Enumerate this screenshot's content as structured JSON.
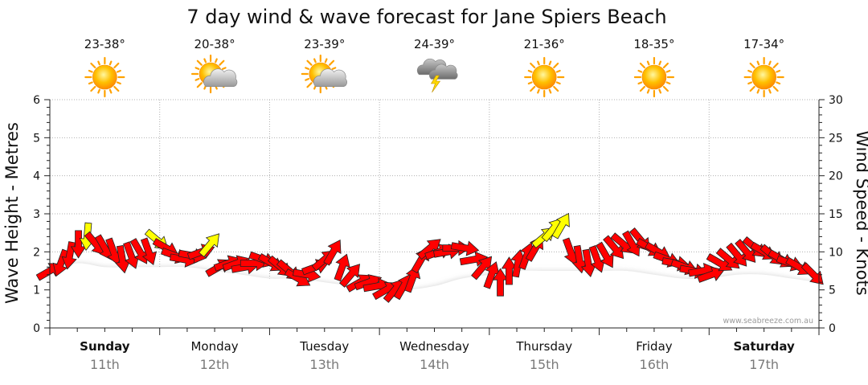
{
  "chart_data": {
    "type": "line",
    "title": "7 day wind & wave forecast for Jane Spiers Beach",
    "ylabel_left": "Wave Height - Metres",
    "ylabel_right": "Wind Speed - Knots",
    "ylim_left": [
      0,
      6
    ],
    "ylim_right": [
      0,
      30
    ],
    "yticks_left": [
      "0",
      "1",
      "2",
      "3",
      "4",
      "5",
      "6"
    ],
    "yticks_right": [
      "0",
      "5",
      "10",
      "15",
      "20",
      "25",
      "30"
    ],
    "grid": true,
    "watermark": "www.seabreeze.com.au",
    "days": [
      {
        "name": "Sunday",
        "date": "11th",
        "temp": "23-38°",
        "icon": "sun-icon",
        "bold": true
      },
      {
        "name": "Monday",
        "date": "12th",
        "temp": "20-38°",
        "icon": "sun-cloud-icon",
        "bold": false
      },
      {
        "name": "Tuesday",
        "date": "13th",
        "temp": "23-39°",
        "icon": "sun-cloud-icon",
        "bold": false
      },
      {
        "name": "Wednesday",
        "date": "14th",
        "temp": "24-39°",
        "icon": "storm-icon",
        "bold": false
      },
      {
        "name": "Thursday",
        "date": "15th",
        "temp": "21-36°",
        "icon": "sun-icon",
        "bold": false
      },
      {
        "name": "Friday",
        "date": "16th",
        "temp": "18-35°",
        "icon": "sun-icon",
        "bold": false
      },
      {
        "name": "Saturday",
        "date": "17th",
        "temp": "17-34°",
        "icon": "sun-icon",
        "bold": true
      }
    ],
    "wave_x_days": [
      0,
      0.25,
      0.5,
      0.75,
      1,
      1.25,
      1.5,
      1.75,
      2,
      2.25,
      2.5,
      2.75,
      3,
      3.25,
      3.5,
      3.75,
      4,
      4.25,
      4.5,
      4.75,
      5,
      5.25,
      5.5,
      5.75,
      6,
      6.25,
      6.5,
      6.75,
      7
    ],
    "wave_height_m": [
      1.5,
      1.7,
      1.6,
      1.6,
      1.6,
      1.6,
      1.5,
      1.4,
      1.3,
      1.3,
      1.2,
      1.1,
      1.0,
      1.0,
      1.1,
      1.3,
      1.4,
      1.5,
      1.5,
      1.5,
      1.5,
      1.5,
      1.4,
      1.3,
      1.3,
      1.4,
      1.4,
      1.3,
      1.2
    ],
    "wind_arrows": [
      {
        "t": 0.0,
        "speed": 7.5,
        "dir": 240,
        "color": "red"
      },
      {
        "t": 0.1,
        "speed": 8.5,
        "dir": 20,
        "color": "red"
      },
      {
        "t": 0.18,
        "speed": 9.5,
        "dir": 10,
        "color": "red"
      },
      {
        "t": 0.26,
        "speed": 11.0,
        "dir": 0,
        "color": "red"
      },
      {
        "t": 0.34,
        "speed": 12.0,
        "dir": 5,
        "color": "yellow"
      },
      {
        "t": 0.42,
        "speed": 11.0,
        "dir": 320,
        "color": "red"
      },
      {
        "t": 0.5,
        "speed": 10.5,
        "dir": 330,
        "color": "red"
      },
      {
        "t": 0.58,
        "speed": 10.0,
        "dir": 340,
        "color": "red"
      },
      {
        "t": 0.66,
        "speed": 9.0,
        "dir": 350,
        "color": "red"
      },
      {
        "t": 0.74,
        "speed": 9.5,
        "dir": 340,
        "color": "red"
      },
      {
        "t": 0.82,
        "speed": 10.0,
        "dir": 330,
        "color": "red"
      },
      {
        "t": 0.9,
        "speed": 10.0,
        "dir": 340,
        "color": "red"
      },
      {
        "t": 0.98,
        "speed": 11.5,
        "dir": 310,
        "color": "yellow"
      },
      {
        "t": 1.06,
        "speed": 10.5,
        "dir": 300,
        "color": "red"
      },
      {
        "t": 1.14,
        "speed": 9.5,
        "dir": 290,
        "color": "red"
      },
      {
        "t": 1.22,
        "speed": 9.0,
        "dir": 280,
        "color": "red"
      },
      {
        "t": 1.3,
        "speed": 9.5,
        "dir": 280,
        "color": "red"
      },
      {
        "t": 1.38,
        "speed": 10.0,
        "dir": 250,
        "color": "red"
      },
      {
        "t": 1.46,
        "speed": 11.0,
        "dir": 220,
        "color": "yellow"
      },
      {
        "t": 1.54,
        "speed": 8.0,
        "dir": 240,
        "color": "red"
      },
      {
        "t": 1.62,
        "speed": 8.5,
        "dir": 250,
        "color": "red"
      },
      {
        "t": 1.7,
        "speed": 8.5,
        "dir": 250,
        "color": "red"
      },
      {
        "t": 1.78,
        "speed": 8.0,
        "dir": 260,
        "color": "red"
      },
      {
        "t": 1.86,
        "speed": 8.5,
        "dir": 270,
        "color": "red"
      },
      {
        "t": 1.94,
        "speed": 9.0,
        "dir": 290,
        "color": "red"
      },
      {
        "t": 2.02,
        "speed": 8.5,
        "dir": 300,
        "color": "red"
      },
      {
        "t": 2.1,
        "speed": 8.0,
        "dir": 310,
        "color": "red"
      },
      {
        "t": 2.18,
        "speed": 7.5,
        "dir": 310,
        "color": "red"
      },
      {
        "t": 2.26,
        "speed": 6.5,
        "dir": 300,
        "color": "red"
      },
      {
        "t": 2.34,
        "speed": 7.0,
        "dir": 280,
        "color": "red"
      },
      {
        "t": 2.42,
        "speed": 8.0,
        "dir": 250,
        "color": "red"
      },
      {
        "t": 2.5,
        "speed": 9.0,
        "dir": 230,
        "color": "red"
      },
      {
        "t": 2.58,
        "speed": 10.0,
        "dir": 210,
        "color": "red"
      },
      {
        "t": 2.66,
        "speed": 8.0,
        "dir": 200,
        "color": "red"
      },
      {
        "t": 2.74,
        "speed": 7.0,
        "dir": 220,
        "color": "red"
      },
      {
        "t": 2.82,
        "speed": 6.0,
        "dir": 240,
        "color": "red"
      },
      {
        "t": 2.9,
        "speed": 6.0,
        "dir": 250,
        "color": "red"
      },
      {
        "t": 2.98,
        "speed": 5.5,
        "dir": 260,
        "color": "red"
      },
      {
        "t": 3.06,
        "speed": 5.0,
        "dir": 240,
        "color": "red"
      },
      {
        "t": 3.14,
        "speed": 5.0,
        "dir": 220,
        "color": "red"
      },
      {
        "t": 3.22,
        "speed": 5.5,
        "dir": 210,
        "color": "red"
      },
      {
        "t": 3.3,
        "speed": 6.5,
        "dir": 200,
        "color": "red"
      },
      {
        "t": 3.38,
        "speed": 9.0,
        "dir": 210,
        "color": "red"
      },
      {
        "t": 3.46,
        "speed": 10.5,
        "dir": 230,
        "color": "red"
      },
      {
        "t": 3.54,
        "speed": 10.0,
        "dir": 250,
        "color": "red"
      },
      {
        "t": 3.62,
        "speed": 10.0,
        "dir": 260,
        "color": "red"
      },
      {
        "t": 3.7,
        "speed": 10.5,
        "dir": 270,
        "color": "red"
      },
      {
        "t": 3.78,
        "speed": 10.5,
        "dir": 280,
        "color": "red"
      },
      {
        "t": 3.86,
        "speed": 9.0,
        "dir": 260,
        "color": "red"
      },
      {
        "t": 3.94,
        "speed": 8.0,
        "dir": 220,
        "color": "red"
      },
      {
        "t": 4.02,
        "speed": 7.0,
        "dir": 200,
        "color": "red"
      },
      {
        "t": 4.1,
        "speed": 6.0,
        "dir": 180,
        "color": "red"
      },
      {
        "t": 4.18,
        "speed": 7.5,
        "dir": 180,
        "color": "red"
      },
      {
        "t": 4.26,
        "speed": 8.5,
        "dir": 190,
        "color": "red"
      },
      {
        "t": 4.34,
        "speed": 9.5,
        "dir": 200,
        "color": "red"
      },
      {
        "t": 4.42,
        "speed": 10.5,
        "dir": 210,
        "color": "red"
      },
      {
        "t": 4.5,
        "speed": 12.0,
        "dir": 230,
        "color": "yellow"
      },
      {
        "t": 4.58,
        "speed": 13.0,
        "dir": 220,
        "color": "yellow"
      },
      {
        "t": 4.66,
        "speed": 13.5,
        "dir": 210,
        "color": "yellow"
      },
      {
        "t": 4.74,
        "speed": 10.0,
        "dir": 340,
        "color": "red"
      },
      {
        "t": 4.82,
        "speed": 9.0,
        "dir": 350,
        "color": "red"
      },
      {
        "t": 4.9,
        "speed": 8.5,
        "dir": 350,
        "color": "red"
      },
      {
        "t": 4.98,
        "speed": 9.0,
        "dir": 340,
        "color": "red"
      },
      {
        "t": 5.06,
        "speed": 9.5,
        "dir": 330,
        "color": "red"
      },
      {
        "t": 5.14,
        "speed": 10.5,
        "dir": 320,
        "color": "red"
      },
      {
        "t": 5.22,
        "speed": 11.0,
        "dir": 310,
        "color": "red"
      },
      {
        "t": 5.3,
        "speed": 11.0,
        "dir": 330,
        "color": "red"
      },
      {
        "t": 5.38,
        "speed": 11.5,
        "dir": 320,
        "color": "red"
      },
      {
        "t": 5.46,
        "speed": 10.5,
        "dir": 300,
        "color": "red"
      },
      {
        "t": 5.54,
        "speed": 10.0,
        "dir": 300,
        "color": "red"
      },
      {
        "t": 5.62,
        "speed": 9.0,
        "dir": 290,
        "color": "red"
      },
      {
        "t": 5.7,
        "speed": 8.5,
        "dir": 280,
        "color": "red"
      },
      {
        "t": 5.78,
        "speed": 8.0,
        "dir": 290,
        "color": "red"
      },
      {
        "t": 5.86,
        "speed": 7.5,
        "dir": 280,
        "color": "red"
      },
      {
        "t": 5.94,
        "speed": 7.5,
        "dir": 260,
        "color": "red"
      },
      {
        "t": 6.02,
        "speed": 7.0,
        "dir": 250,
        "color": "red"
      },
      {
        "t": 6.1,
        "speed": 8.5,
        "dir": 300,
        "color": "red"
      },
      {
        "t": 6.18,
        "speed": 9.0,
        "dir": 310,
        "color": "red"
      },
      {
        "t": 6.26,
        "speed": 9.5,
        "dir": 320,
        "color": "red"
      },
      {
        "t": 6.34,
        "speed": 10.0,
        "dir": 320,
        "color": "red"
      },
      {
        "t": 6.42,
        "speed": 10.5,
        "dir": 310,
        "color": "red"
      },
      {
        "t": 6.5,
        "speed": 10.0,
        "dir": 300,
        "color": "red"
      },
      {
        "t": 6.58,
        "speed": 9.5,
        "dir": 310,
        "color": "red"
      },
      {
        "t": 6.66,
        "speed": 9.0,
        "dir": 300,
        "color": "red"
      },
      {
        "t": 6.74,
        "speed": 8.5,
        "dir": 290,
        "color": "red"
      },
      {
        "t": 6.82,
        "speed": 8.0,
        "dir": 300,
        "color": "red"
      },
      {
        "t": 6.95,
        "speed": 7.0,
        "dir": 315,
        "color": "red"
      }
    ],
    "colors": {
      "wave_fill": "#ffffff",
      "wave_shadow": "#8c8c8c",
      "arrow_red": "#ff0000",
      "arrow_yellow": "#ffff00",
      "grid": "#b0b0b0",
      "axis": "#222222",
      "text": "#111111",
      "date_text": "#7a7a7a"
    }
  }
}
